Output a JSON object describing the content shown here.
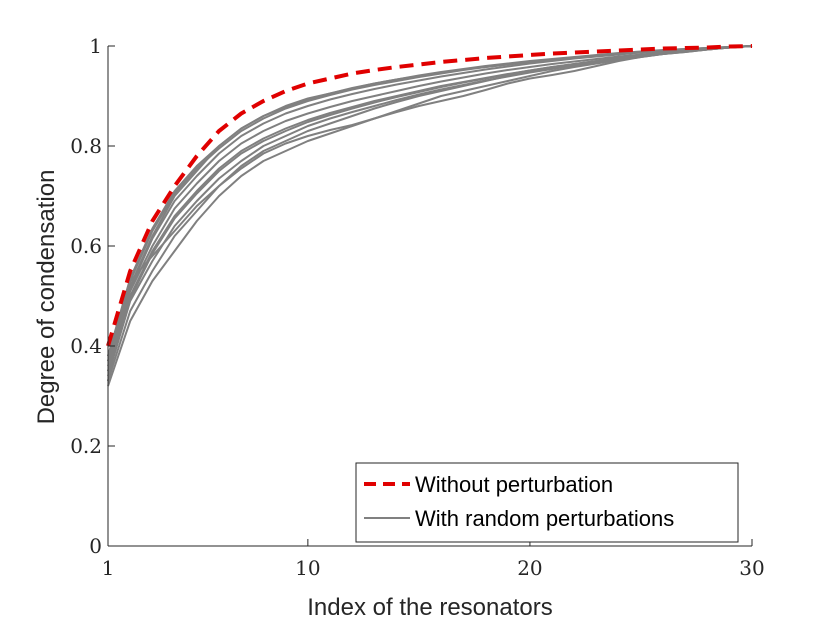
{
  "chart_data": {
    "type": "line",
    "title": "",
    "xlabel": "Index of the resonators",
    "ylabel": "Degree of condensation",
    "xlim": [
      1,
      30
    ],
    "ylim": [
      0,
      1
    ],
    "xticks": [
      1,
      10,
      20,
      30
    ],
    "xtick_labels": [
      "1",
      "10",
      "20",
      "30"
    ],
    "yticks": [
      0,
      0.2,
      0.4,
      0.6,
      0.8,
      1
    ],
    "ytick_labels": [
      "0",
      "0.2",
      "0.4",
      "0.6",
      "0.8",
      "1"
    ],
    "grid": false,
    "legend_position": "bottom-right",
    "x": [
      1,
      2,
      3,
      4,
      5,
      6,
      7,
      8,
      9,
      10,
      11,
      12,
      13,
      14,
      15,
      16,
      17,
      18,
      19,
      20,
      21,
      22,
      23,
      24,
      25,
      26,
      27,
      28,
      29,
      30
    ],
    "series": [
      {
        "name": "Without perturbation",
        "style": "dashed",
        "color": "#e00000",
        "values": [
          0.4,
          0.55,
          0.65,
          0.72,
          0.78,
          0.83,
          0.865,
          0.89,
          0.91,
          0.925,
          0.935,
          0.945,
          0.952,
          0.958,
          0.963,
          0.968,
          0.972,
          0.976,
          0.979,
          0.982,
          0.985,
          0.987,
          0.989,
          0.991,
          0.993,
          0.995,
          0.996,
          0.997,
          0.999,
          1.0
        ]
      },
      {
        "name": "With random perturbations",
        "style": "solid",
        "color": "#808080",
        "values": [
          0.37,
          0.52,
          0.62,
          0.7,
          0.75,
          0.8,
          0.835,
          0.86,
          0.88,
          0.895,
          0.905,
          0.915,
          0.925,
          0.933,
          0.94,
          0.947,
          0.953,
          0.958,
          0.963,
          0.968,
          0.972,
          0.976,
          0.98,
          0.984,
          0.987,
          0.99,
          0.993,
          0.995,
          0.998,
          1.0
        ]
      },
      {
        "name": "",
        "style": "solid",
        "color": "#808080",
        "values": [
          0.33,
          0.47,
          0.55,
          0.62,
          0.67,
          0.72,
          0.76,
          0.79,
          0.81,
          0.83,
          0.845,
          0.86,
          0.875,
          0.888,
          0.9,
          0.91,
          0.92,
          0.93,
          0.94,
          0.948,
          0.955,
          0.962,
          0.968,
          0.974,
          0.98,
          0.985,
          0.989,
          0.993,
          0.997,
          1.0
        ]
      },
      {
        "name": "",
        "style": "solid",
        "color": "#808080",
        "values": [
          0.32,
          0.45,
          0.53,
          0.59,
          0.65,
          0.7,
          0.74,
          0.77,
          0.79,
          0.81,
          0.825,
          0.84,
          0.855,
          0.87,
          0.885,
          0.9,
          0.91,
          0.92,
          0.93,
          0.94,
          0.95,
          0.958,
          0.965,
          0.972,
          0.978,
          0.984,
          0.988,
          0.993,
          0.997,
          1.0
        ]
      },
      {
        "name": "",
        "style": "solid",
        "color": "#808080",
        "values": [
          0.35,
          0.5,
          0.59,
          0.66,
          0.71,
          0.755,
          0.79,
          0.815,
          0.835,
          0.852,
          0.866,
          0.878,
          0.89,
          0.9,
          0.91,
          0.92,
          0.928,
          0.936,
          0.944,
          0.951,
          0.958,
          0.964,
          0.97,
          0.976,
          0.981,
          0.986,
          0.99,
          0.994,
          0.997,
          1.0
        ]
      },
      {
        "name": "",
        "style": "solid",
        "color": "#808080",
        "values": [
          0.38,
          0.53,
          0.63,
          0.705,
          0.755,
          0.795,
          0.83,
          0.855,
          0.875,
          0.89,
          0.902,
          0.913,
          0.922,
          0.93,
          0.938,
          0.945,
          0.952,
          0.958,
          0.963,
          0.968,
          0.973,
          0.977,
          0.981,
          0.985,
          0.988,
          0.991,
          0.994,
          0.996,
          0.998,
          1.0
        ]
      },
      {
        "name": "",
        "style": "solid",
        "color": "#808080",
        "values": [
          0.34,
          0.49,
          0.57,
          0.64,
          0.69,
          0.735,
          0.77,
          0.8,
          0.82,
          0.84,
          0.855,
          0.868,
          0.88,
          0.892,
          0.903,
          0.913,
          0.922,
          0.931,
          0.939,
          0.947,
          0.954,
          0.961,
          0.967,
          0.973,
          0.979,
          0.984,
          0.989,
          0.993,
          0.997,
          1.0
        ]
      },
      {
        "name": "",
        "style": "solid",
        "color": "#808080",
        "values": [
          0.36,
          0.51,
          0.6,
          0.675,
          0.725,
          0.77,
          0.805,
          0.83,
          0.85,
          0.865,
          0.878,
          0.89,
          0.9,
          0.91,
          0.92,
          0.929,
          0.937,
          0.945,
          0.952,
          0.958,
          0.964,
          0.969,
          0.974,
          0.979,
          0.983,
          0.987,
          0.991,
          0.994,
          0.997,
          1.0
        ]
      },
      {
        "name": "",
        "style": "solid",
        "color": "#808080",
        "values": [
          0.33,
          0.53,
          0.58,
          0.63,
          0.68,
          0.72,
          0.755,
          0.785,
          0.805,
          0.82,
          0.832,
          0.842,
          0.855,
          0.868,
          0.88,
          0.89,
          0.9,
          0.912,
          0.925,
          0.935,
          0.942,
          0.95,
          0.96,
          0.97,
          0.978,
          0.984,
          0.988,
          0.993,
          0.997,
          1.0
        ]
      },
      {
        "name": "",
        "style": "solid",
        "color": "#808080",
        "values": [
          0.37,
          0.515,
          0.615,
          0.69,
          0.74,
          0.785,
          0.82,
          0.845,
          0.865,
          0.88,
          0.893,
          0.904,
          0.914,
          0.923,
          0.931,
          0.939,
          0.946,
          0.953,
          0.959,
          0.965,
          0.97,
          0.975,
          0.979,
          0.983,
          0.987,
          0.99,
          0.993,
          0.996,
          0.998,
          1.0
        ]
      },
      {
        "name": "",
        "style": "solid",
        "color": "#808080",
        "values": [
          0.35,
          0.495,
          0.585,
          0.655,
          0.705,
          0.75,
          0.785,
          0.81,
          0.83,
          0.848,
          0.862,
          0.875,
          0.887,
          0.898,
          0.908,
          0.918,
          0.927,
          0.935,
          0.943,
          0.951,
          0.958,
          0.964,
          0.97,
          0.976,
          0.981,
          0.986,
          0.99,
          0.994,
          0.997,
          1.0
        ]
      },
      {
        "name": "",
        "style": "solid",
        "color": "#808080",
        "values": [
          0.38,
          0.535,
          0.635,
          0.71,
          0.76,
          0.8,
          0.835,
          0.86,
          0.878,
          0.893,
          0.905,
          0.916,
          0.925,
          0.933,
          0.941,
          0.948,
          0.954,
          0.96,
          0.965,
          0.97,
          0.974,
          0.978,
          0.982,
          0.986,
          0.989,
          0.992,
          0.994,
          0.996,
          0.998,
          1.0
        ]
      }
    ],
    "legend": [
      {
        "label": "Without perturbation",
        "style": "dashed",
        "color": "#e00000"
      },
      {
        "label": "With random perturbations",
        "style": "solid",
        "color": "#808080"
      }
    ]
  }
}
